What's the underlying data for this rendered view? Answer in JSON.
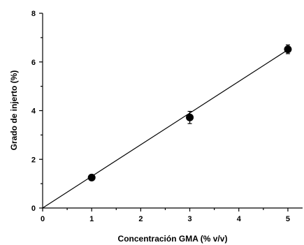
{
  "chart_data": {
    "type": "scatter",
    "xlabel": "Concentración GMA (% v/v)",
    "ylabel": "Grado de injerto (%)",
    "xlim": [
      0,
      5.3
    ],
    "ylim": [
      0,
      8
    ],
    "x_ticks": [
      0,
      1,
      2,
      3,
      4,
      5
    ],
    "y_ticks": [
      0,
      2,
      4,
      6,
      8
    ],
    "grid": false,
    "series": [
      {
        "points": [
          {
            "x": 1,
            "y": 1.25,
            "err": 0.08
          },
          {
            "x": 3,
            "y": 3.72,
            "err": 0.25
          },
          {
            "x": 5,
            "y": 6.52,
            "err": 0.18
          }
        ]
      }
    ],
    "fit_line": {
      "x": [
        0,
        5
      ],
      "y": [
        0,
        6.5
      ]
    }
  }
}
